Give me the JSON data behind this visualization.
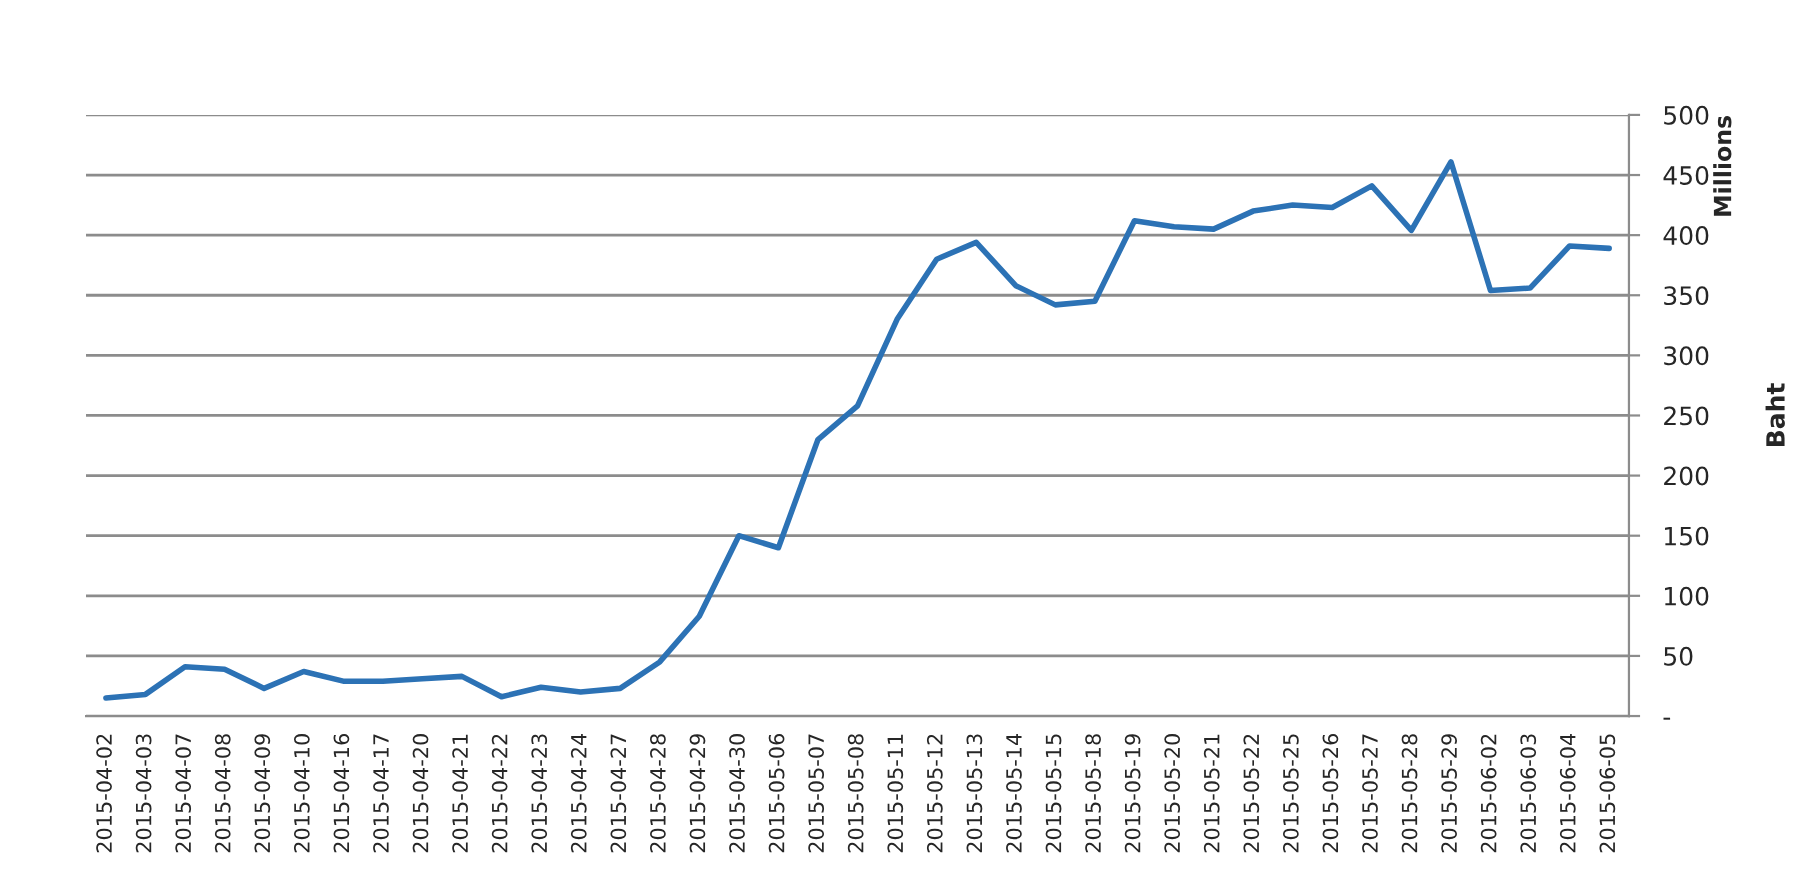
{
  "chart_data": {
    "type": "line",
    "categories": [
      "2015-04-02",
      "2015-04-03",
      "2015-04-07",
      "2015-04-08",
      "2015-04-09",
      "2015-04-10",
      "2015-04-16",
      "2015-04-17",
      "2015-04-20",
      "2015-04-21",
      "2015-04-22",
      "2015-04-23",
      "2015-04-24",
      "2015-04-27",
      "2015-04-28",
      "2015-04-29",
      "2015-04-30",
      "2015-05-06",
      "2015-05-07",
      "2015-05-08",
      "2015-05-11",
      "2015-05-12",
      "2015-05-13",
      "2015-05-14",
      "2015-05-15",
      "2015-05-18",
      "2015-05-19",
      "2015-05-20",
      "2015-05-21",
      "2015-05-22",
      "2015-05-25",
      "2015-05-26",
      "2015-05-27",
      "2015-05-28",
      "2015-05-29",
      "2015-06-02",
      "2015-06-03",
      "2015-06-04",
      "2015-06-05"
    ],
    "series": [
      {
        "color": "#2c72b5",
        "values": [
          15,
          18,
          41,
          39,
          23,
          37,
          29,
          29,
          31,
          33,
          16,
          24,
          20,
          23,
          45,
          83,
          150,
          140,
          230,
          258,
          330,
          380,
          394,
          358,
          342,
          345,
          412,
          407,
          405,
          420,
          425,
          423,
          441,
          404,
          461,
          354,
          356,
          391,
          389
        ]
      }
    ],
    "ylabel": "Baht",
    "annotations": [
      "Millions"
    ],
    "ylim": [
      0,
      500
    ],
    "yticks": [
      {
        "value": 0,
        "label": "-"
      },
      50,
      100,
      150,
      200,
      250,
      300,
      350,
      400,
      450,
      500
    ],
    "grid": "y",
    "legend": false,
    "marker": "none",
    "line_style": "solid"
  }
}
